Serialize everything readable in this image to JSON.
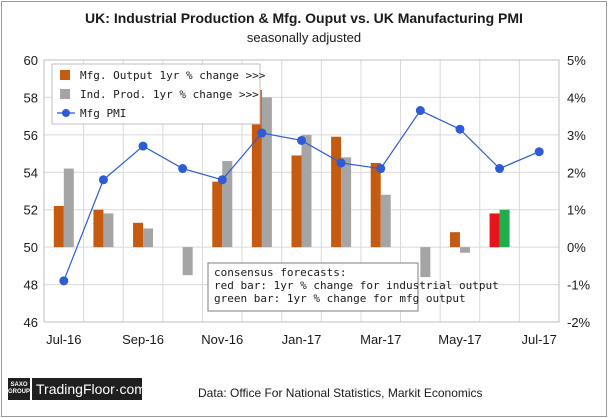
{
  "title": "UK: Industrial Production & Mfg. Ouput vs. UK Manufacturing PMI",
  "subtitle": "seasonally adjusted",
  "source": "Data: Office For National Statistics, Markit Economics",
  "logo": {
    "group_line1": "SAXO",
    "group_line2": "GROUP",
    "name": "TradingFloor·com"
  },
  "annotation": {
    "lines": [
      "consensus forecasts:",
      "red bar: 1yr % change for industrial output",
      "green bar: 1yr % change for mfg output"
    ]
  },
  "colors": {
    "mfg_output": "#c55a11",
    "ind_prod": "#a5a5a5",
    "pmi": "#2e5bd6",
    "forecast_red": "#e8141b",
    "forecast_green": "#1fae4b",
    "axis_left": "#2e5bd6",
    "grid": "#d9d9d9"
  },
  "chart_data": {
    "type": "bar+line",
    "title": "UK: Industrial Production & Mfg. Ouput vs. UK Manufacturing PMI",
    "subtitle": "seasonally adjusted",
    "months": [
      "Jul-16",
      "Aug-16",
      "Sep-16",
      "Oct-16",
      "Nov-16",
      "Dec-16",
      "Jan-17",
      "Feb-17",
      "Mar-17",
      "Apr-17",
      "May-17",
      "Jun-17",
      "Jul-17"
    ],
    "x_tick_labels": [
      "Jul-16",
      "Sep-16",
      "Nov-16",
      "Jan-17",
      "Mar-17",
      "May-17",
      "Jul-17"
    ],
    "left_axis": {
      "min": 46,
      "max": 60,
      "step": 2,
      "ticks": [
        "46",
        "48",
        "50",
        "52",
        "54",
        "56",
        "58",
        "60"
      ]
    },
    "right_axis": {
      "min": -2,
      "max": 5,
      "step": 1,
      "ticks": [
        "-2%",
        "-1%",
        "0%",
        "1%",
        "2%",
        "3%",
        "4%",
        "5%"
      ]
    },
    "series": [
      {
        "name": "Mfg. Output 1yr % change >>>",
        "axis": "right",
        "kind": "bar",
        "values": [
          1.1,
          1.0,
          0.65,
          null,
          1.75,
          4.2,
          2.45,
          2.95,
          2.25,
          null,
          0.4,
          null,
          null
        ]
      },
      {
        "name": "Ind. Prod. 1yr % change >>>",
        "axis": "right",
        "kind": "bar",
        "values": [
          2.1,
          0.9,
          0.5,
          -0.75,
          2.3,
          4.0,
          3.0,
          2.4,
          1.4,
          -0.8,
          -0.15,
          null,
          null
        ]
      },
      {
        "name": "Mfg PMI",
        "axis": "left",
        "kind": "line",
        "values": [
          48.2,
          53.6,
          55.4,
          54.2,
          53.6,
          56.1,
          55.7,
          54.5,
          54.2,
          57.3,
          56.3,
          54.2,
          55.1
        ]
      }
    ],
    "forecasts": [
      {
        "name": "red bar",
        "month": "Jun-17",
        "value": 0.9
      },
      {
        "name": "green bar",
        "month": "Jun-17",
        "value": 1.0
      }
    ]
  }
}
